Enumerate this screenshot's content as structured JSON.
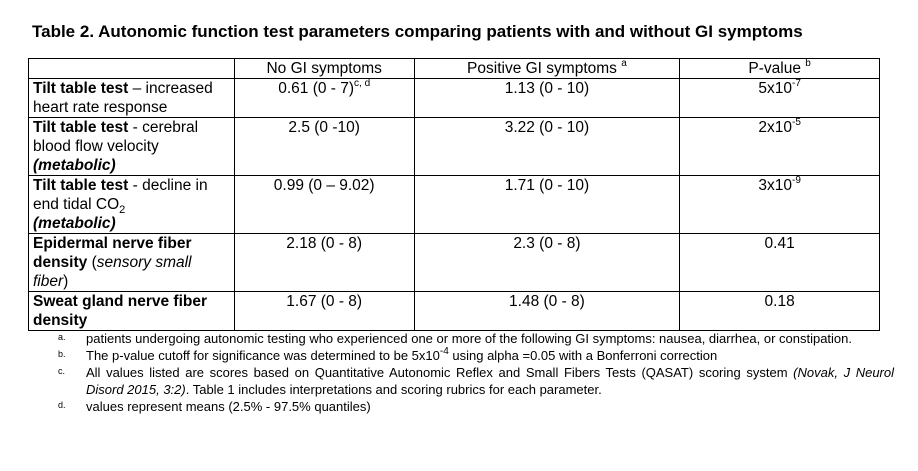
{
  "title": "Table 2. Autonomic function test parameters comparing patients with and without GI symptoms",
  "header": {
    "col2": "No GI symptoms",
    "col3": "Positive GI symptoms",
    "col3_sup": "a",
    "col4": "P-value",
    "col4_sup": "b"
  },
  "rows": [
    {
      "label_bold": "Tilt table test",
      "label_rest": " – increased heart rate response",
      "no_gi": "0.61 (0 - 7)",
      "no_gi_sup": "c, d",
      "pos_gi": "1.13 (0 - 10)",
      "p_base": "5x10",
      "p_exp": "-7"
    },
    {
      "label_bold": "Tilt table test",
      "label_rest": " - cerebral blood flow velocity",
      "label_tag": "(metabolic)",
      "no_gi": "2.5 (0 -10)",
      "pos_gi": "3.22 (0 - 10)",
      "p_base": "2x10",
      "p_exp": "-5"
    },
    {
      "label_bold": "Tilt table test",
      "label_rest": " - decline in end tidal CO",
      "label_sub": "2",
      "label_tag": "(metabolic)",
      "no_gi": "0.99 (0 – 9.02)",
      "pos_gi": "1.71 (0 - 10)",
      "p_base": "3x10",
      "p_exp": "-9"
    },
    {
      "label_bold": "Epidermal nerve fiber density",
      "label_paren_open": " (",
      "label_italic": "sensory small fiber",
      "label_paren_close": ")",
      "no_gi": "2.18 (0 - 8)",
      "pos_gi": "2.3 (0 - 8)",
      "p": "0.41"
    },
    {
      "label_bold": "Sweat gland nerve fiber density",
      "no_gi": "1.67 (0 - 8)",
      "pos_gi": "1.48 (0 - 8)",
      "p": "0.18"
    }
  ],
  "notes": [
    {
      "marker": "a.",
      "text": "patients undergoing autonomic testing who experienced one or more of the following GI symptoms: nausea, diarrhea, or constipation."
    },
    {
      "marker": "b.",
      "text_before": "The p-value cutoff for significance was determined to be 5x10",
      "exp": "-4",
      "text_after": " using alpha =0.05 with a Bonferroni correction"
    },
    {
      "marker": "c.",
      "text_before": "All values listed are scores based on Quantitative Autonomic Reflex and Small Fibers Tests (QASAT) scoring system ",
      "citation": "(Novak, J Neurol Disord 2015, 3:2)",
      "text_after": ". Table 1 includes interpretations and scoring rubrics for each parameter."
    },
    {
      "marker": "d.",
      "text": "values represent means (2.5% - 97.5% quantiles)"
    }
  ]
}
